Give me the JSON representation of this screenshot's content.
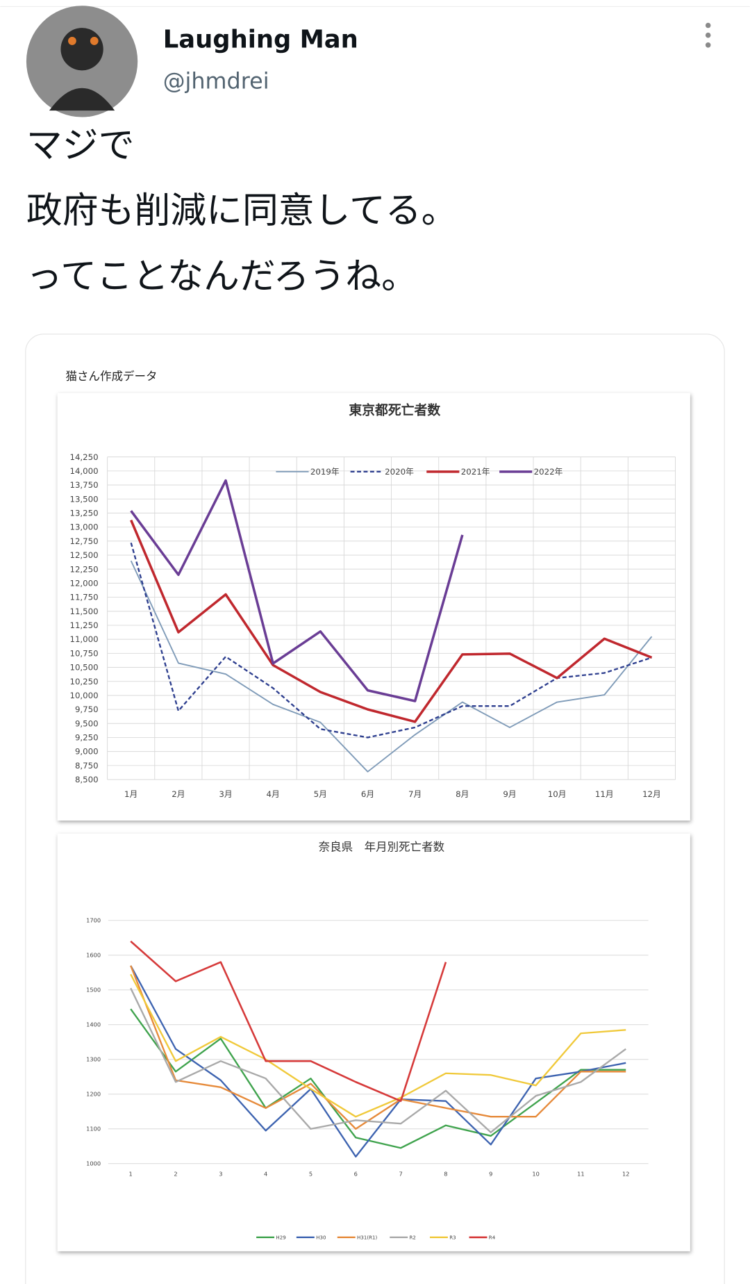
{
  "tweet": {
    "name": "Laughing Man",
    "handle": "@jhmdrei",
    "text": [
      "マジで",
      "政府も削減に同意してる。",
      "ってことなんだろうね。"
    ],
    "image_caption": "猫さん作成データ"
  },
  "chart_data": [
    {
      "type": "line",
      "title": "東京都死亡者数",
      "categories": [
        "1月",
        "2月",
        "3月",
        "4月",
        "5月",
        "6月",
        "7月",
        "8月",
        "9月",
        "10月",
        "11月",
        "12月"
      ],
      "ylim": [
        8500,
        14250
      ],
      "yticks": [
        {
          "value": 8500,
          "label": "8,500"
        },
        {
          "value": 8750,
          "label": "8,750"
        },
        {
          "value": 9000,
          "label": "9,000"
        },
        {
          "value": 9250,
          "label": "9,250"
        },
        {
          "value": 9500,
          "label": "9,500"
        },
        {
          "value": 9750,
          "label": "9,750"
        },
        {
          "value": 10000,
          "label": "10,000"
        },
        {
          "value": 10250,
          "label": "10,250"
        },
        {
          "value": 10500,
          "label": "10,500"
        },
        {
          "value": 10750,
          "label": "10,750"
        },
        {
          "value": 11000,
          "label": "11,000"
        },
        {
          "value": 11250,
          "label": "11,250"
        },
        {
          "value": 11500,
          "label": "11,500"
        },
        {
          "value": 11750,
          "label": "11,750"
        },
        {
          "value": 12000,
          "label": "12,000"
        },
        {
          "value": 12250,
          "label": "12,250"
        },
        {
          "value": 12500,
          "label": "12,500"
        },
        {
          "value": 12750,
          "label": "12,750"
        },
        {
          "value": 13000,
          "label": "13,000"
        },
        {
          "value": 13250,
          "label": "13,250"
        },
        {
          "value": 13500,
          "label": "13,500"
        },
        {
          "value": 13750,
          "label": "13,750"
        },
        {
          "value": 14000,
          "label": "14,000"
        },
        {
          "value": 14250,
          "label": "14,250"
        }
      ],
      "grid": true,
      "legend": "top",
      "series": [
        {
          "name": "2019年",
          "color": "#7f9bb8",
          "values": [
            12400,
            10575,
            10380,
            9840,
            9520,
            8640,
            9300,
            9880,
            9430,
            9880,
            10010,
            11050
          ]
        },
        {
          "name": "2020年",
          "color": "#2e3f8f",
          "linestyle": "dashed",
          "values": [
            12720,
            9725,
            10690,
            10130,
            9400,
            9250,
            9430,
            9810,
            9810,
            10310,
            10400,
            10675
          ]
        },
        {
          "name": "2021年",
          "color": "#c0282e",
          "values": [
            13125,
            11125,
            11800,
            10540,
            10060,
            9750,
            9530,
            10730,
            10745,
            10310,
            11010,
            10675
          ]
        },
        {
          "name": "2022年",
          "color": "#6a3d95",
          "values": [
            13290,
            12150,
            13830,
            10570,
            11140,
            10090,
            9900,
            12860,
            null,
            null,
            null,
            null
          ]
        }
      ]
    },
    {
      "type": "line",
      "title": "奈良県　年月別死亡者数",
      "categories": [
        "1",
        "2",
        "3",
        "4",
        "5",
        "6",
        "7",
        "8",
        "9",
        "10",
        "11",
        "12"
      ],
      "ylim": [
        1000,
        1700
      ],
      "yticks": [
        1000,
        1100,
        1200,
        1300,
        1400,
        1500,
        1600,
        1700
      ],
      "grid": true,
      "legend": "bottom",
      "series": [
        {
          "name": "H29",
          "color": "#3fa34d",
          "values": [
            1445,
            1265,
            1360,
            1160,
            1245,
            1075,
            1045,
            1110,
            1080,
            1175,
            1270,
            1270
          ]
        },
        {
          "name": "H30",
          "color": "#3d63b0",
          "values": [
            1570,
            1330,
            1240,
            1095,
            1215,
            1020,
            1185,
            1180,
            1055,
            1245,
            1265,
            1290
          ]
        },
        {
          "name": "H31(R1)",
          "color": "#e68a3a",
          "values": [
            1570,
            1240,
            1220,
            1160,
            1230,
            1100,
            1185,
            1160,
            1135,
            1135,
            1265,
            1265
          ]
        },
        {
          "name": "R2",
          "color": "#a9a9a9",
          "values": [
            1505,
            1235,
            1295,
            1245,
            1100,
            1125,
            1115,
            1210,
            1090,
            1195,
            1235,
            1330
          ]
        },
        {
          "name": "R3",
          "color": "#f0c93a",
          "values": [
            1545,
            1295,
            1365,
            1300,
            1215,
            1135,
            1190,
            1260,
            1255,
            1225,
            1375,
            1385
          ]
        },
        {
          "name": "R4",
          "color": "#d63a3a",
          "values": [
            1640,
            1525,
            1580,
            1295,
            1295,
            1235,
            1180,
            1580,
            null,
            null,
            null,
            null
          ]
        }
      ]
    }
  ]
}
